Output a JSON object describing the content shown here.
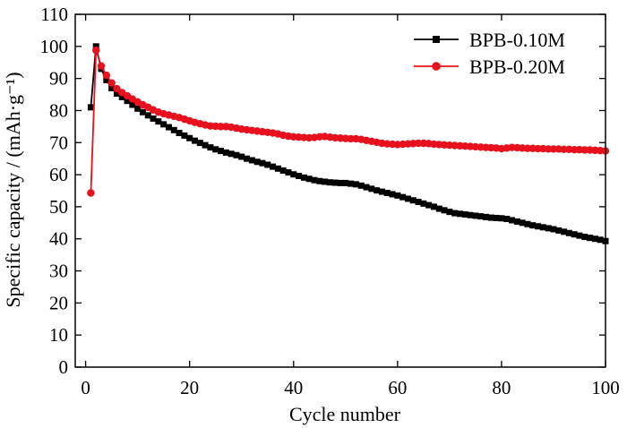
{
  "chart_data": {
    "type": "line",
    "xlabel": "Cycle number",
    "ylabel": "Specific capacity / (mAh·g⁻¹)",
    "xlim": [
      -2,
      100
    ],
    "ylim": [
      0,
      110
    ],
    "xticks": [
      0,
      20,
      40,
      60,
      80,
      100
    ],
    "yticks": [
      0,
      10,
      20,
      30,
      40,
      50,
      60,
      70,
      80,
      90,
      100,
      110
    ],
    "legend_position": "top-right",
    "series": [
      {
        "name": "BPB-0.10M",
        "color": "#000000",
        "marker": "square",
        "x": [
          1,
          2,
          3,
          4,
          5,
          6,
          7,
          8,
          9,
          10,
          11,
          12,
          13,
          14,
          15,
          16,
          17,
          18,
          19,
          20,
          21,
          22,
          23,
          24,
          25,
          26,
          27,
          28,
          29,
          30,
          31,
          32,
          33,
          34,
          35,
          36,
          37,
          38,
          39,
          40,
          41,
          42,
          43,
          44,
          45,
          46,
          47,
          48,
          49,
          50,
          51,
          52,
          53,
          54,
          55,
          56,
          57,
          58,
          59,
          60,
          61,
          62,
          63,
          64,
          65,
          66,
          67,
          68,
          69,
          70,
          71,
          72,
          73,
          74,
          75,
          76,
          77,
          78,
          79,
          80,
          81,
          82,
          83,
          84,
          85,
          86,
          87,
          88,
          89,
          90,
          91,
          92,
          93,
          94,
          95,
          96,
          97,
          98,
          99,
          100
        ],
        "y": [
          81,
          100,
          93,
          89.5,
          87,
          85.3,
          84.2,
          83,
          81.8,
          80.6,
          79.5,
          78.5,
          77.5,
          76.6,
          75.7,
          74.8,
          73.9,
          73,
          72.2,
          71.4,
          70.6,
          69.9,
          69.2,
          68.5,
          67.9,
          67.4,
          66.9,
          66.5,
          66.1,
          65.6,
          65,
          64.5,
          64,
          63.6,
          63.1,
          62.5,
          61.9,
          61.3,
          60.7,
          60.1,
          59.6,
          59.1,
          58.7,
          58.3,
          58,
          57.8,
          57.6,
          57.5,
          57.4,
          57.4,
          57.2,
          57,
          56.6,
          56.1,
          55.6,
          55.1,
          54.7,
          54.3,
          53.9,
          53.5,
          53,
          52.5,
          52,
          51.5,
          51,
          50.5,
          50,
          49.4,
          48.9,
          48.4,
          48,
          47.8,
          47.6,
          47.4,
          47.2,
          47,
          46.8,
          46.6,
          46.5,
          46.4,
          46.2,
          45.8,
          45.4,
          45,
          44.6,
          44.2,
          43.9,
          43.6,
          43.3,
          43,
          42.6,
          42.2,
          41.8,
          41.4,
          41,
          40.6,
          40.3,
          40,
          39.7,
          39.3
        ]
      },
      {
        "name": "BPB-0.20M",
        "color": "#e8101c",
        "marker": "circle",
        "x": [
          1,
          2,
          3,
          4,
          5,
          6,
          7,
          8,
          9,
          10,
          11,
          12,
          13,
          14,
          15,
          16,
          17,
          18,
          19,
          20,
          21,
          22,
          23,
          24,
          25,
          26,
          27,
          28,
          29,
          30,
          31,
          32,
          33,
          34,
          35,
          36,
          37,
          38,
          39,
          40,
          41,
          42,
          43,
          44,
          45,
          46,
          47,
          48,
          49,
          50,
          51,
          52,
          53,
          54,
          55,
          56,
          57,
          58,
          59,
          60,
          61,
          62,
          63,
          64,
          65,
          66,
          67,
          68,
          69,
          70,
          71,
          72,
          73,
          74,
          75,
          76,
          77,
          78,
          79,
          80,
          81,
          82,
          83,
          84,
          85,
          86,
          87,
          88,
          89,
          90,
          91,
          92,
          93,
          94,
          95,
          96,
          97,
          98,
          99,
          100
        ],
        "y": [
          54.3,
          98.8,
          93.9,
          91,
          88.6,
          86.8,
          85.6,
          84.6,
          83.6,
          82.7,
          81.8,
          81,
          80.2,
          79.5,
          79,
          78.6,
          78.2,
          77.8,
          77.3,
          76.8,
          76.3,
          75.9,
          75.5,
          75.2,
          75.1,
          75,
          75,
          74.8,
          74.5,
          74.2,
          74,
          73.8,
          73.6,
          73.4,
          73.2,
          73,
          72.7,
          72.3,
          72,
          71.8,
          71.7,
          71.6,
          71.5,
          71.6,
          71.8,
          71.9,
          71.7,
          71.5,
          71.4,
          71.3,
          71.2,
          71.2,
          71,
          70.7,
          70.4,
          70.1,
          69.8,
          69.6,
          69.5,
          69.4,
          69.5,
          69.6,
          69.7,
          69.8,
          69.8,
          69.7,
          69.5,
          69.4,
          69.3,
          69.2,
          69.1,
          69,
          68.9,
          68.8,
          68.7,
          68.6,
          68.5,
          68.4,
          68.3,
          68.1,
          68.3,
          68.5,
          68.4,
          68.3,
          68.2,
          68.2,
          68.1,
          68.1,
          68,
          68,
          68,
          67.9,
          67.9,
          67.8,
          67.8,
          67.7,
          67.7,
          67.6,
          67.5,
          67.4
        ]
      }
    ]
  }
}
